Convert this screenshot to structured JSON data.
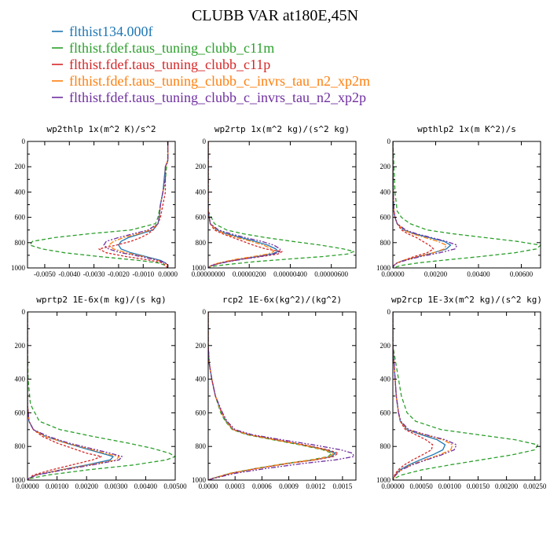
{
  "chart_data": {
    "title": "CLUBB VAR at180E,45N",
    "series": [
      {
        "name": "flthist134.000f",
        "color": "#1f77b4",
        "dash": ""
      },
      {
        "name": "flthist.fdef.taus_tuning_clubb_c11m",
        "color": "#2ca02c",
        "dash": "5,3"
      },
      {
        "name": "flthist.fdef.taus_tuning_clubb_c11p",
        "color": "#d62728",
        "dash": "3,2"
      },
      {
        "name": "flthist.fdef.taus_tuning_clubb_c_invrs_tau_n2_xp2m",
        "color": "#ff7f0e",
        "dash": "6,2,2,2"
      },
      {
        "name": "flthist.fdef.taus_tuning_clubb_c_invrs_tau_n2_xp2p",
        "color": "#7030a0",
        "dash": "6,2,2,2,2,2"
      }
    ],
    "panels": [
      {
        "type": "line",
        "title": "wp2thlp  1x(m^2 K)/s^2",
        "xlim": [
          -0.0057,
          0.0003
        ],
        "ylim": [
          1000,
          0
        ],
        "xticks": [
          -0.005,
          -0.004,
          -0.003,
          -0.002,
          -0.001,
          0.0
        ],
        "xticklabels": [
          "-0.0050",
          "-0.0040",
          "-0.0030",
          "-0.0020",
          "-0.0010",
          "0.0000"
        ],
        "yticks": [
          0,
          200,
          400,
          600,
          800,
          1000
        ],
        "lev": [
          0,
          100,
          150,
          200,
          300,
          400,
          500,
          600,
          650,
          700,
          730,
          760,
          790,
          820,
          850,
          880,
          910,
          940,
          960,
          980,
          1000
        ],
        "data": [
          [
            0,
            0,
            0,
            -0.0001,
            -0.00015,
            -0.0002,
            -0.0003,
            -0.00035,
            -0.0004,
            -0.0006,
            -0.0011,
            -0.0016,
            -0.0019,
            -0.002,
            -0.0019,
            -0.0015,
            -0.0009,
            -0.0003,
            -0.0001,
            0,
            0
          ],
          [
            0,
            0,
            0,
            -5e-05,
            -0.0001,
            -0.0002,
            -0.0003,
            -0.0004,
            -0.0005,
            -0.0015,
            -0.0032,
            -0.0046,
            -0.0055,
            -0.0056,
            -0.0051,
            -0.0042,
            -0.0028,
            -0.0012,
            -0.0004,
            -0.0001,
            0
          ],
          [
            0,
            0,
            0,
            -0.0001,
            -0.0001,
            -0.0001,
            -0.0002,
            -0.0003,
            -0.0004,
            -0.0006,
            -0.0008,
            -0.0011,
            -0.0015,
            -0.0021,
            -0.0028,
            -0.0025,
            -0.0017,
            -0.0007,
            -0.0002,
            -0.0001,
            0
          ],
          [
            0,
            0,
            0,
            -0.0001,
            -0.0001,
            -0.0002,
            -0.0003,
            -0.00035,
            -0.0004,
            -0.0007,
            -0.0012,
            -0.0018,
            -0.0022,
            -0.0024,
            -0.0022,
            -0.0017,
            -0.001,
            -0.0004,
            -0.0001,
            0,
            0
          ],
          [
            0,
            0,
            0,
            -0.0001,
            -0.0001,
            -0.0002,
            -0.0003,
            -0.00035,
            -0.0004,
            -0.0008,
            -0.0014,
            -0.002,
            -0.0025,
            -0.0026,
            -0.0024,
            -0.0019,
            -0.0011,
            -0.0004,
            -0.0001,
            0,
            0
          ]
        ]
      },
      {
        "type": "line",
        "title": "wp2rtp  1x(m^2 kg)/(s^2 kg)",
        "xlim": [
          0,
          7.2e-06
        ],
        "ylim": [
          1000,
          0
        ],
        "xticks": [
          0,
          2e-06,
          4e-06,
          6e-06
        ],
        "xticklabels": [
          "0.00000000",
          "0.00000200",
          "0.00000400",
          "0.00000600"
        ],
        "yticks": [
          0,
          200,
          400,
          600,
          800,
          1000
        ],
        "lev": [
          0,
          200,
          400,
          550,
          650,
          700,
          730,
          760,
          790,
          820,
          850,
          870,
          890,
          910,
          930,
          950,
          970,
          985,
          1000
        ],
        "data": [
          [
            0,
            0,
            0,
            0,
            1e-07,
            4e-07,
            9e-07,
            1.6e-06,
            2.3e-06,
            2.9e-06,
            3.3e-06,
            3.4e-06,
            3.1e-06,
            2.4e-06,
            1.6e-06,
            9e-07,
            4e-07,
            1e-07,
            0
          ],
          [
            0,
            0,
            0,
            0,
            3e-07,
            9e-07,
            1.7e-06,
            2.8e-06,
            4.1e-06,
            5.5e-06,
            6.6e-06,
            7.1e-06,
            6.8e-06,
            5.6e-06,
            3.9e-06,
            2.3e-06,
            1.1e-06,
            3e-07,
            0
          ],
          [
            0,
            0,
            0,
            0,
            1e-07,
            3e-07,
            7e-07,
            1.2e-06,
            1.7e-06,
            2.2e-06,
            2.8e-06,
            3.6e-06,
            3.4e-06,
            2.6e-06,
            1.7e-06,
            9e-07,
            4e-07,
            1e-07,
            0
          ],
          [
            0,
            0,
            0,
            0,
            1e-07,
            4e-07,
            8e-07,
            1.4e-06,
            2.1e-06,
            2.7e-06,
            3.1e-06,
            3.2e-06,
            2.9e-06,
            2.2e-06,
            1.4e-06,
            8e-07,
            3e-07,
            1e-07,
            0
          ],
          [
            0,
            0,
            0,
            0,
            1e-07,
            5e-07,
            1.1e-06,
            1.8e-06,
            2.6e-06,
            3.2e-06,
            3.5e-06,
            3.5e-06,
            3.2e-06,
            2.5e-06,
            1.7e-06,
            1e-06,
            4e-07,
            1e-07,
            0
          ]
        ]
      },
      {
        "type": "line",
        "title": "wpthlp2  1x(m K^2)/s",
        "xlim": [
          0,
          0.0069
        ],
        "ylim": [
          1000,
          0
        ],
        "xticks": [
          0,
          0.002,
          0.004,
          0.006
        ],
        "xticklabels": [
          "0.00000",
          "0.00200",
          "0.00400",
          "0.00600"
        ],
        "yticks": [
          0,
          200,
          400,
          600,
          800,
          1000
        ],
        "lev": [
          0,
          200,
          400,
          550,
          600,
          650,
          700,
          730,
          760,
          790,
          820,
          850,
          880,
          910,
          940,
          960,
          980,
          1000
        ],
        "data": [
          [
            0,
            0,
            2e-05,
            5e-05,
            0.0001,
            0.0002,
            0.0005,
            0.001,
            0.0017,
            0.0024,
            0.0027,
            0.0025,
            0.0019,
            0.0012,
            0.0005,
            0.0002,
            5e-05,
            0
          ],
          [
            0,
            5e-05,
            0.0001,
            0.0002,
            0.0004,
            0.0008,
            0.0016,
            0.0028,
            0.0043,
            0.0058,
            0.0069,
            0.0067,
            0.0057,
            0.0041,
            0.0023,
            0.0012,
            0.0004,
            0
          ],
          [
            0,
            0,
            2e-05,
            5e-05,
            0.0001,
            0.0002,
            0.0004,
            0.0007,
            0.0011,
            0.0014,
            0.0017,
            0.0019,
            0.0016,
            0.001,
            0.0005,
            0.0002,
            5e-05,
            0
          ],
          [
            0,
            0,
            2e-05,
            5e-05,
            0.0001,
            0.0002,
            0.0005,
            0.0009,
            0.0015,
            0.0021,
            0.0025,
            0.0024,
            0.0019,
            0.0012,
            0.0005,
            0.0002,
            5e-05,
            0
          ],
          [
            0,
            0,
            2e-05,
            5e-05,
            0.0001,
            0.0002,
            0.0006,
            0.0011,
            0.0018,
            0.0025,
            0.003,
            0.0029,
            0.0022,
            0.0013,
            0.0006,
            0.0002,
            5e-05,
            0
          ]
        ]
      },
      {
        "type": "line",
        "title": "wprtp2  1E-6x(m kg)/(s kg)",
        "xlim": [
          0,
          0.005
        ],
        "ylim": [
          1000,
          0
        ],
        "xticks": [
          0,
          0.001,
          0.002,
          0.003,
          0.004,
          0.005
        ],
        "xticklabels": [
          "0.00000",
          "0.00100",
          "0.00200",
          "0.00300",
          "0.00400",
          "0.00500"
        ],
        "yticks": [
          0,
          200,
          400,
          600,
          800,
          1000
        ],
        "lev": [
          0,
          200,
          400,
          550,
          650,
          700,
          740,
          780,
          810,
          840,
          860,
          880,
          910,
          940,
          970,
          990,
          1000
        ],
        "data": [
          [
            0,
            0,
            0,
            0,
            5e-05,
            0.0002,
            0.0006,
            0.0013,
            0.0019,
            0.0025,
            0.0029,
            0.0028,
            0.002,
            0.0011,
            0.0003,
            5e-05,
            0
          ],
          [
            0,
            0,
            2e-05,
            0.0001,
            0.0004,
            0.0011,
            0.0022,
            0.0034,
            0.0042,
            0.0048,
            0.005,
            0.0047,
            0.0036,
            0.002,
            0.0007,
            0.0001,
            0
          ],
          [
            0,
            0,
            0,
            0,
            5e-05,
            0.0002,
            0.0005,
            0.001,
            0.0015,
            0.002,
            0.0025,
            0.0022,
            0.0015,
            0.0008,
            0.0002,
            5e-05,
            0
          ],
          [
            0,
            0,
            0,
            0,
            5e-05,
            0.0002,
            0.0006,
            0.0013,
            0.002,
            0.0026,
            0.0031,
            0.003,
            0.0021,
            0.0011,
            0.0003,
            5e-05,
            0
          ],
          [
            0,
            0,
            0,
            0,
            5e-05,
            0.0002,
            0.0007,
            0.0014,
            0.0021,
            0.0028,
            0.0032,
            0.0031,
            0.0022,
            0.0012,
            0.0003,
            5e-05,
            0
          ]
        ]
      },
      {
        "type": "line",
        "title": "rcp2  1E-6x(kg^2)/(kg^2)",
        "xlim": [
          0,
          0.00165
        ],
        "ylim": [
          1000,
          0
        ],
        "xticks": [
          0,
          0.0003,
          0.0006,
          0.0009,
          0.0012,
          0.0015
        ],
        "xticklabels": [
          "0.0000",
          "0.0003",
          "0.0006",
          "0.0009",
          "0.0012",
          "0.0015"
        ],
        "yticks": [
          0,
          200,
          400,
          600,
          800,
          1000
        ],
        "lev": [
          0,
          200,
          300,
          400,
          500,
          600,
          650,
          700,
          730,
          760,
          790,
          820,
          840,
          860,
          880,
          900,
          930,
          960,
          990,
          1000
        ],
        "data": [
          [
            0,
            0,
            1e-05,
            4e-05,
            8e-05,
            0.00015,
            0.0002,
            0.00028,
            0.00045,
            0.00075,
            0.00105,
            0.00132,
            0.00142,
            0.00138,
            0.00118,
            0.0009,
            0.00055,
            0.00025,
            5e-05,
            0
          ],
          [
            0,
            0,
            1e-05,
            4e-05,
            8e-05,
            0.00014,
            0.00019,
            0.00027,
            0.00043,
            0.00072,
            0.00102,
            0.00128,
            0.00138,
            0.00134,
            0.00115,
            0.00088,
            0.00054,
            0.00024,
            5e-05,
            0
          ],
          [
            0,
            0,
            1e-05,
            4e-05,
            8e-05,
            0.00015,
            0.0002,
            0.00028,
            0.00046,
            0.00076,
            0.00107,
            0.00134,
            0.00145,
            0.0014,
            0.0012,
            0.00091,
            0.00056,
            0.00025,
            5e-05,
            0
          ],
          [
            0,
            0,
            1e-05,
            4e-05,
            8e-05,
            0.00015,
            0.0002,
            0.00028,
            0.00045,
            0.00074,
            0.00104,
            0.0013,
            0.0014,
            0.00136,
            0.00117,
            0.00089,
            0.00055,
            0.00025,
            5e-05,
            0
          ],
          [
            0,
            0,
            1e-05,
            4e-05,
            8e-05,
            0.00016,
            0.00021,
            0.0003,
            0.00049,
            0.00082,
            0.00117,
            0.00148,
            0.00161,
            0.00163,
            0.00142,
            0.00108,
            0.00066,
            0.0003,
            6e-05,
            0
          ]
        ]
      },
      {
        "type": "line",
        "title": "wp2rcp  1E-3x(m^2 kg)/(s^2 kg)",
        "xlim": [
          0,
          0.0026
        ],
        "ylim": [
          1000,
          0
        ],
        "xticks": [
          0,
          0.0005,
          0.001,
          0.0015,
          0.002,
          0.0025
        ],
        "xticklabels": [
          "0.00000",
          "0.00050",
          "0.00100",
          "0.00150",
          "0.00200",
          "0.00250"
        ],
        "yticks": [
          0,
          200,
          400,
          600,
          800,
          1000
        ],
        "lev": [
          0,
          200,
          300,
          400,
          500,
          600,
          650,
          700,
          730,
          760,
          790,
          820,
          850,
          880,
          910,
          940,
          970,
          990,
          1000
        ],
        "data": [
          [
            0,
            0,
            2e-05,
            4e-05,
            6e-05,
            0.0001,
            0.00013,
            0.00025,
            0.0005,
            0.00078,
            0.00092,
            0.00088,
            0.0007,
            0.00048,
            0.00028,
            0.00012,
            4e-05,
            1e-05,
            0
          ],
          [
            0,
            0,
            5e-05,
            0.0001,
            0.00015,
            0.00025,
            0.0004,
            0.00085,
            0.0015,
            0.00215,
            0.00255,
            0.0025,
            0.0021,
            0.00155,
            0.001,
            0.0005,
            0.00015,
            3e-05,
            0
          ],
          [
            0,
            0,
            2e-05,
            4e-05,
            6e-05,
            0.0001,
            0.00013,
            0.00022,
            0.0004,
            0.00058,
            0.0007,
            0.00068,
            0.00052,
            0.00035,
            0.0002,
            9e-05,
            3e-05,
            1e-05,
            0
          ],
          [
            0,
            0,
            2e-05,
            4e-05,
            6e-05,
            0.0001,
            0.00013,
            0.00026,
            0.00055,
            0.00088,
            0.00105,
            0.00102,
            0.00082,
            0.00056,
            0.00032,
            0.00014,
            4e-05,
            1e-05,
            0
          ],
          [
            0,
            0,
            2e-05,
            4e-05,
            6e-05,
            0.0001,
            0.00014,
            0.00028,
            0.00058,
            0.00092,
            0.00112,
            0.00108,
            0.00086,
            0.00059,
            0.00034,
            0.00015,
            5e-05,
            1e-05,
            0
          ]
        ]
      }
    ]
  }
}
